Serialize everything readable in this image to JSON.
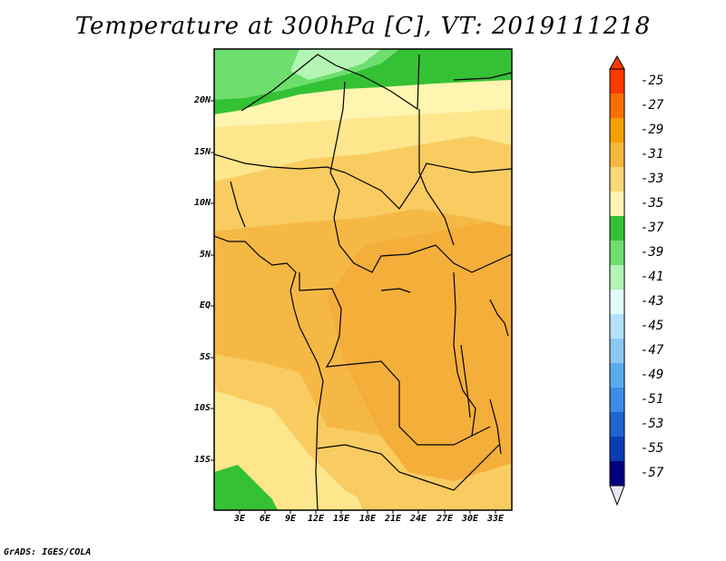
{
  "title": "Temperature at 300hPa [C], VT: 2019111218",
  "footer": "GrADS: IGES/COLA",
  "map": {
    "lat_labels": [
      "20N",
      "15N",
      "10N",
      "5N",
      "EQ",
      "5S",
      "10S",
      "15S"
    ],
    "lon_labels": [
      "3E",
      "6E",
      "9E",
      "12E",
      "15E",
      "18E",
      "21E",
      "24E",
      "27E",
      "30E",
      "33E"
    ]
  },
  "colorbar": {
    "labels": [
      "-25",
      "-27",
      "-29",
      "-31",
      "-33",
      "-35",
      "-37",
      "-39",
      "-41",
      "-43",
      "-45",
      "-47",
      "-49",
      "-51",
      "-53",
      "-55",
      "-57"
    ],
    "colors": [
      "#ff3a00",
      "#f87000",
      "#f4a000",
      "#f8b840",
      "#f8d878",
      "#fef5b0",
      "#34c234",
      "#6ede6e",
      "#b4f4b4",
      "#e4fbfb",
      "#b4e2fa",
      "#8cc8f4",
      "#5aaaf0",
      "#3c8ce6",
      "#1e64d2",
      "#0a3cb4",
      "#000080"
    ],
    "top_arrow_color": "#ff3a00",
    "bottom_arrow_color": "#e6e6f6"
  },
  "palette": {
    "warm_orange": "#f4b040",
    "light_orange": "#f8cc60",
    "light_yellow": "#fde68c",
    "pale_yellow": "#fef5b0",
    "green_dark": "#34c234",
    "green_mid": "#6ede6e",
    "green_light": "#b4f4b4"
  }
}
